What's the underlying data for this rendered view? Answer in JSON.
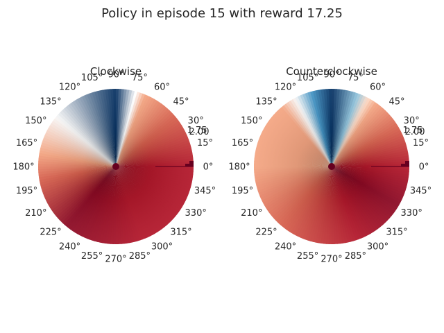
{
  "figure": {
    "title": "Policy in episode 15 with reward 17.25"
  },
  "chart_data": [
    {
      "type": "heatmap",
      "projection": "polar",
      "title": "Clockwise",
      "theta_ticks": [
        "0°",
        "15°",
        "30°",
        "45°",
        "60°",
        "75°",
        "90°",
        "105°",
        "120°",
        "135°",
        "150°",
        "165°",
        "180°",
        "195°",
        "210°",
        "225°",
        "240°",
        "255°",
        "270°",
        "285°",
        "300°",
        "315°",
        "330°",
        "345°"
      ],
      "radial_tick_labels": [
        "1.75",
        "2.00"
      ],
      "colormap": "RdBu",
      "color_anchors": [
        {
          "angle_deg": 0,
          "color": "#b2182b"
        },
        {
          "angle_deg": 40,
          "color": "#d6604d"
        },
        {
          "angle_deg": 68,
          "color": "#f4a582"
        },
        {
          "angle_deg": 75,
          "color": "#ffffff"
        },
        {
          "angle_deg": 90,
          "color": "#053061"
        },
        {
          "angle_deg": 140,
          "color": "#f7f7f7"
        },
        {
          "angle_deg": 170,
          "color": "#f4a582"
        },
        {
          "angle_deg": 190,
          "color": "#d6604d"
        },
        {
          "angle_deg": 230,
          "color": "#8b0a24"
        },
        {
          "angle_deg": 290,
          "color": "#b2182b"
        },
        {
          "angle_deg": 360,
          "color": "#b2182b"
        }
      ]
    },
    {
      "type": "heatmap",
      "projection": "polar",
      "title": "Counterclockwise",
      "theta_ticks": [
        "0°",
        "15°",
        "30°",
        "45°",
        "60°",
        "75°",
        "90°",
        "105°",
        "120°",
        "135°",
        "150°",
        "165°",
        "180°",
        "195°",
        "210°",
        "225°",
        "240°",
        "255°",
        "270°",
        "285°",
        "300°",
        "315°",
        "330°",
        "345°"
      ],
      "radial_tick_labels": [
        "1.75",
        "2.00"
      ],
      "colormap": "RdBu",
      "color_anchors": [
        {
          "angle_deg": 0,
          "color": "#b2182b"
        },
        {
          "angle_deg": 30,
          "color": "#d6604d"
        },
        {
          "angle_deg": 55,
          "color": "#f4a582"
        },
        {
          "angle_deg": 62,
          "color": "#fddbc7"
        },
        {
          "angle_deg": 70,
          "color": "#92c5de"
        },
        {
          "angle_deg": 90,
          "color": "#053061"
        },
        {
          "angle_deg": 105,
          "color": "#4393c3"
        },
        {
          "angle_deg": 118,
          "color": "#f7f7f7"
        },
        {
          "angle_deg": 130,
          "color": "#f4a582"
        },
        {
          "angle_deg": 180,
          "color": "#f4a582"
        },
        {
          "angle_deg": 230,
          "color": "#d6604d"
        },
        {
          "angle_deg": 290,
          "color": "#b2182b"
        },
        {
          "angle_deg": 330,
          "color": "#8b0a24"
        },
        {
          "angle_deg": 360,
          "color": "#b2182b"
        }
      ]
    }
  ]
}
